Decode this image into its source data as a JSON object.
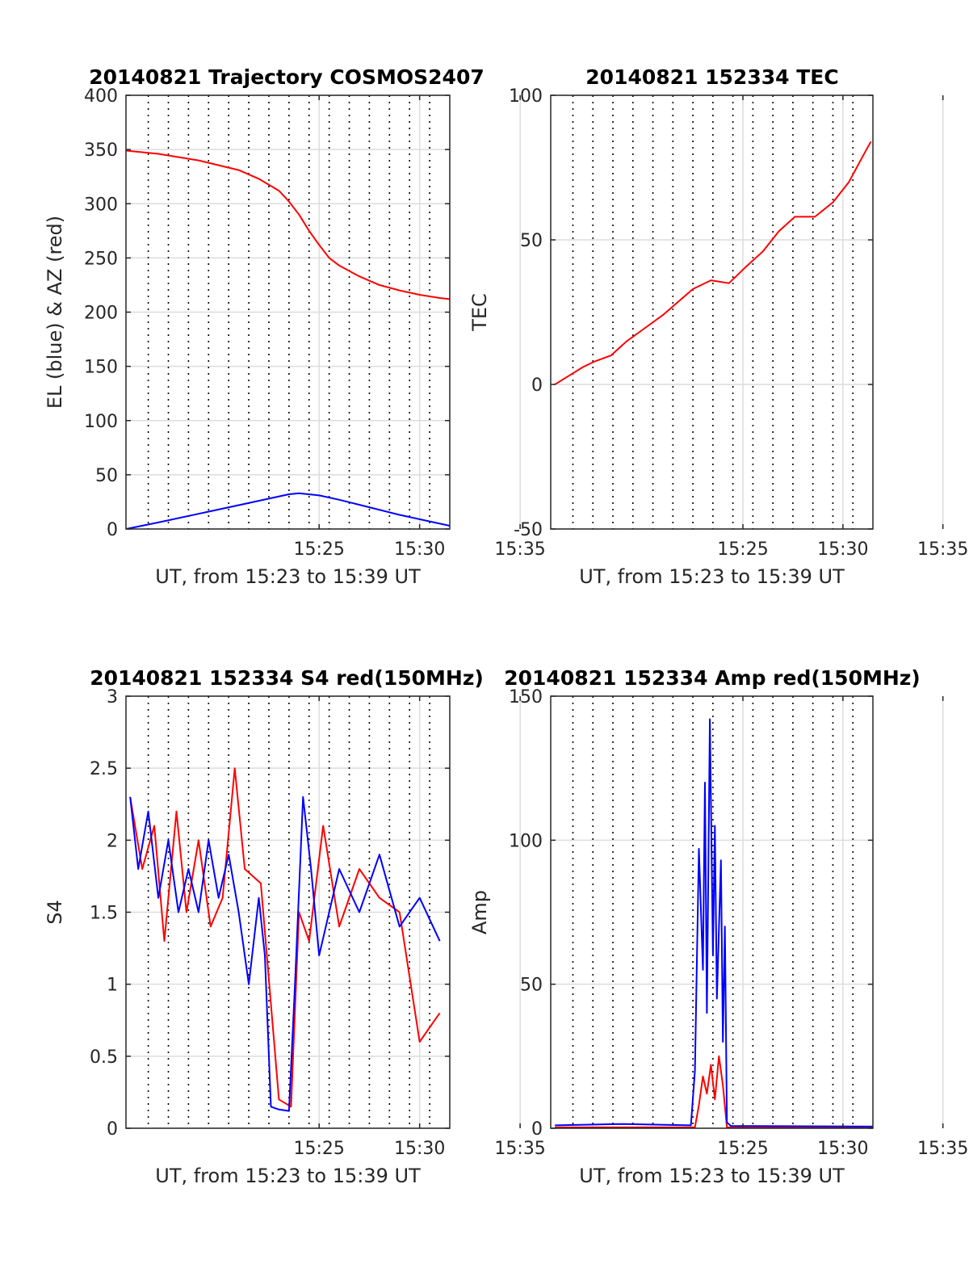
{
  "colors": {
    "el": "#0000ff",
    "az": "#ff0000",
    "grid": "#dcdcdc",
    "axis": "#262626",
    "vline": "#000000"
  },
  "chart_data": [
    {
      "id": "trajectory",
      "type": "line",
      "title": "20140821 Trajectory COSMOS2407",
      "xlabel": "UT, from 15:23 to 15:39 UT",
      "ylabel": "EL (blue) & AZ (red)",
      "xlim": [
        15.39,
        31.5
      ],
      "ylim": [
        0,
        400
      ],
      "xticks": [
        {
          "value": 25,
          "label": "15:25"
        },
        {
          "value": 30,
          "label": "15:30"
        },
        {
          "value": 35,
          "label": "15:35"
        }
      ],
      "yticks": [
        0,
        50,
        100,
        150,
        200,
        250,
        300,
        350,
        400
      ],
      "grid": true,
      "dotted_verticals": [
        16.5,
        17.5,
        18.5,
        19.5,
        20.5,
        21.5,
        22.5,
        23.5,
        24.5,
        25.5,
        26.5,
        27.5,
        28.5,
        29.5,
        30.5
      ],
      "series": [
        {
          "color": "#ff0000",
          "x": [
            15.4,
            17,
            19,
            21,
            22,
            23,
            23.5,
            24,
            24.5,
            25,
            25.5,
            26,
            27,
            28,
            29,
            30,
            31,
            31.5
          ],
          "y": [
            349,
            346,
            340,
            331,
            323,
            312,
            302,
            290,
            275,
            262,
            250,
            243,
            233,
            225,
            220,
            216,
            213,
            212
          ]
        },
        {
          "color": "#0000ff",
          "x": [
            15.4,
            17,
            19,
            21,
            22.5,
            23.5,
            24,
            25,
            26,
            27.5,
            29,
            30.5,
            31.5
          ],
          "y": [
            0,
            6,
            14,
            22,
            28,
            32,
            33,
            31,
            27,
            20,
            13,
            7,
            3
          ]
        }
      ]
    },
    {
      "id": "tec",
      "type": "line",
      "title": "20140821 152334 TEC",
      "xlabel": "UT, from 15:23 to 15:39 UT",
      "ylabel": "TEC",
      "xlim": [
        15.39,
        31.5
      ],
      "ylim": [
        -50,
        100
      ],
      "xticks": [
        {
          "value": 25,
          "label": "15:25"
        },
        {
          "value": 30,
          "label": "15:30"
        },
        {
          "value": 35,
          "label": "15:35"
        }
      ],
      "yticks": [
        -50,
        0,
        50,
        100
      ],
      "grid": true,
      "dotted_verticals": [
        16.5,
        17.5,
        18.5,
        19.5,
        20.5,
        21.5,
        22.5,
        23.5,
        24.5,
        25.5,
        26.5,
        27.5,
        28.5,
        29.5,
        30.5
      ],
      "series": [
        {
          "color": "#ff0000",
          "x": [
            15.6,
            16.3,
            17.0,
            17.6,
            18.4,
            19.2,
            20.0,
            21.0,
            22.0,
            22.5,
            23.4,
            24.3,
            25.2,
            26.0,
            26.8,
            27.6,
            28.6,
            29.5,
            30.3,
            31.0,
            31.4
          ],
          "y": [
            0,
            3,
            6,
            8,
            10,
            15,
            19,
            24,
            30,
            33,
            36,
            35,
            41,
            46,
            53,
            58,
            58,
            63,
            70,
            79,
            84
          ]
        }
      ]
    },
    {
      "id": "s4",
      "type": "line",
      "title": "20140821 152334 S4 red(150MHz)",
      "xlabel": "UT, from 15:23 to 15:39 UT",
      "ylabel": "S4",
      "xlim": [
        15.39,
        31.5
      ],
      "ylim": [
        0,
        3
      ],
      "xticks": [
        {
          "value": 25,
          "label": "15:25"
        },
        {
          "value": 30,
          "label": "15:30"
        },
        {
          "value": 35,
          "label": "15:35"
        }
      ],
      "yticks": [
        0,
        0.5,
        1,
        1.5,
        2,
        2.5,
        3
      ],
      "grid": true,
      "dotted_verticals": [
        16.5,
        17.5,
        18.5,
        19.5,
        20.5,
        21.5,
        22.5,
        23.5,
        24.5,
        25.5,
        26.5,
        27.5,
        28.5,
        29.5,
        30.5
      ],
      "series": [
        {
          "color": "#ff0000",
          "x": [
            15.6,
            16.2,
            16.8,
            17.3,
            17.9,
            18.4,
            19.0,
            19.6,
            20.2,
            20.8,
            21.3,
            22.1,
            23.0,
            23.6,
            24.0,
            24.5,
            25.2,
            26.0,
            27.0,
            28.0,
            29.0,
            30.0,
            31.0
          ],
          "y": [
            2.3,
            1.8,
            2.1,
            1.3,
            2.2,
            1.5,
            2.0,
            1.4,
            1.6,
            2.5,
            1.8,
            1.7,
            0.2,
            0.15,
            1.5,
            1.3,
            2.1,
            1.4,
            1.8,
            1.6,
            1.5,
            0.6,
            0.8
          ]
        },
        {
          "color": "#0000ff",
          "x": [
            15.6,
            16.0,
            16.5,
            17.0,
            17.5,
            18.0,
            18.5,
            19.0,
            19.5,
            20.0,
            20.5,
            21.0,
            21.5,
            22.0,
            22.3,
            22.6,
            23.0,
            23.5,
            23.8,
            24.2,
            24.6,
            25.0,
            26.0,
            27.0,
            28.0,
            29.0,
            30.0,
            31.0
          ],
          "y": [
            2.3,
            1.8,
            2.2,
            1.6,
            2.0,
            1.5,
            1.8,
            1.5,
            2.0,
            1.6,
            1.9,
            1.5,
            1.0,
            1.6,
            1.2,
            0.15,
            0.13,
            0.12,
            1.0,
            2.3,
            1.8,
            1.2,
            1.8,
            1.5,
            1.9,
            1.4,
            1.6,
            1.3
          ]
        }
      ]
    },
    {
      "id": "amp",
      "type": "line",
      "title": "20140821 152334 Amp red(150MHz)",
      "xlabel": "UT, from 15:23 to 15:39 UT",
      "ylabel": "Amp",
      "xlim": [
        15.39,
        31.5
      ],
      "ylim": [
        0,
        150
      ],
      "xticks": [
        {
          "value": 25,
          "label": "15:25"
        },
        {
          "value": 30,
          "label": "15:30"
        },
        {
          "value": 35,
          "label": "15:35"
        }
      ],
      "yticks": [
        0,
        50,
        100,
        150
      ],
      "grid": true,
      "dotted_verticals": [
        16.5,
        17.5,
        18.5,
        19.5,
        20.5,
        21.5,
        22.5,
        23.5,
        24.5,
        25.5,
        26.5,
        27.5,
        28.5,
        29.5,
        30.5
      ],
      "series": [
        {
          "color": "#ff0000",
          "x": [
            15.6,
            22.6,
            22.8,
            23.0,
            23.2,
            23.4,
            23.6,
            23.8,
            24.0,
            24.2,
            31.5
          ],
          "y": [
            0.3,
            0.3,
            8,
            18,
            12,
            22,
            10,
            25,
            15,
            0.3,
            0.3
          ]
        },
        {
          "color": "#0000ff",
          "x": [
            15.6,
            19.0,
            22.4,
            22.6,
            22.8,
            23.0,
            23.1,
            23.2,
            23.35,
            23.5,
            23.6,
            23.7,
            23.9,
            24.0,
            24.1,
            24.2,
            24.4,
            31.5
          ],
          "y": [
            1,
            1.5,
            1,
            20,
            97,
            55,
            120,
            40,
            142,
            60,
            105,
            45,
            93,
            30,
            70,
            2,
            0.8,
            0.6
          ]
        }
      ]
    }
  ]
}
